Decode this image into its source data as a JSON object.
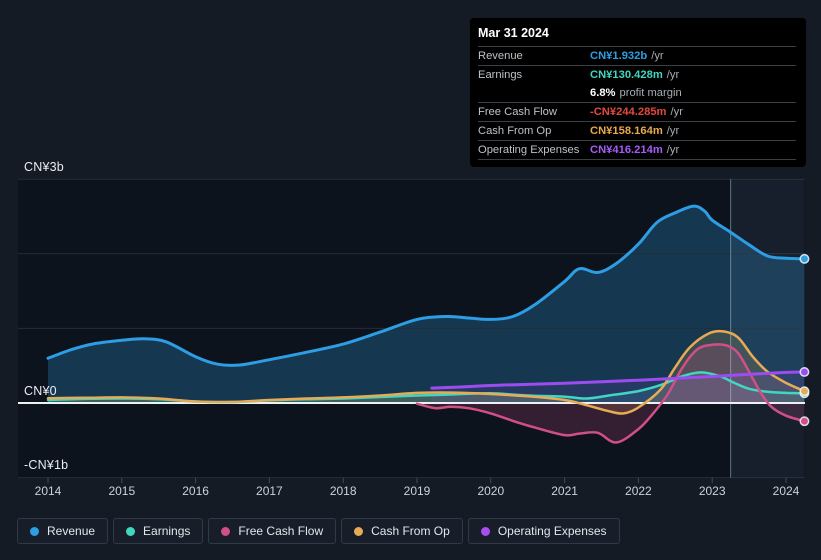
{
  "tooltip": {
    "date": "Mar 31 2024",
    "rows": [
      {
        "id": "revenue",
        "label": "Revenue",
        "value": "CN¥1.932b",
        "suffix": "/yr",
        "color": "#2d9de4"
      },
      {
        "id": "earnings",
        "label": "Earnings",
        "value": "CN¥130.428m",
        "suffix": "/yr",
        "color": "#41d6c0"
      },
      {
        "id": "profit-margin",
        "label": "",
        "value": "6.8%",
        "suffix": "profit margin",
        "color": "#ffffff"
      },
      {
        "id": "free-cash-flow",
        "label": "Free Cash Flow",
        "value": "-CN¥244.285m",
        "suffix": "/yr",
        "color": "#e2493f"
      },
      {
        "id": "cash-from-op",
        "label": "Cash From Op",
        "value": "CN¥158.164m",
        "suffix": "/yr",
        "color": "#e8a94c"
      },
      {
        "id": "operating-expenses",
        "label": "Operating Expenses",
        "value": "CN¥416.214m",
        "suffix": "/yr",
        "color": "#a55cf7"
      }
    ]
  },
  "legend": {
    "items": [
      {
        "id": "revenue",
        "label": "Revenue",
        "color": "#2d9de4"
      },
      {
        "id": "earnings",
        "label": "Earnings",
        "color": "#41d6c0"
      },
      {
        "id": "free-cash-flow",
        "label": "Free Cash Flow",
        "color": "#d14f87"
      },
      {
        "id": "cash-from-op",
        "label": "Cash From Op",
        "color": "#e7ab55"
      },
      {
        "id": "operating-expenses",
        "label": "Operating Expenses",
        "color": "#a94df0"
      }
    ]
  },
  "chart_data": {
    "type": "area",
    "title": "",
    "currency_unit": "CN¥ billions",
    "xlim": [
      2013.6,
      2024.25
    ],
    "ylim": [
      -1,
      3
    ],
    "grid_values": [
      3,
      2,
      1,
      0,
      -1
    ],
    "x_ticks": [
      2014,
      2015,
      2016,
      2017,
      2018,
      2019,
      2020,
      2021,
      2022,
      2023,
      2024
    ],
    "y_ticks": [
      {
        "value": 3,
        "label": "CN¥3b"
      },
      {
        "value": 0,
        "label": "CN¥0"
      },
      {
        "value": -1,
        "label": "-CN¥1b"
      }
    ],
    "highlight_period": {
      "start": 2023.25,
      "end": 2024.25
    },
    "now_line_x": 2023.25,
    "series": [
      {
        "name": "Revenue",
        "id": "revenue",
        "color": "#2d9de4",
        "width": 3,
        "fill_opacity": 0.26,
        "points": [
          [
            2014,
            0.6
          ],
          [
            2014.3,
            0.71
          ],
          [
            2014.6,
            0.79
          ],
          [
            2015,
            0.84
          ],
          [
            2015.3,
            0.86
          ],
          [
            2015.6,
            0.82
          ],
          [
            2016,
            0.62
          ],
          [
            2016.3,
            0.52
          ],
          [
            2016.6,
            0.51
          ],
          [
            2017,
            0.58
          ],
          [
            2017.5,
            0.68
          ],
          [
            2018,
            0.79
          ],
          [
            2018.5,
            0.95
          ],
          [
            2019,
            1.12
          ],
          [
            2019.4,
            1.16
          ],
          [
            2019.7,
            1.14
          ],
          [
            2020,
            1.12
          ],
          [
            2020.3,
            1.16
          ],
          [
            2020.6,
            1.32
          ],
          [
            2021,
            1.63
          ],
          [
            2021.2,
            1.8
          ],
          [
            2021.45,
            1.75
          ],
          [
            2021.7,
            1.87
          ],
          [
            2022,
            2.13
          ],
          [
            2022.25,
            2.42
          ],
          [
            2022.5,
            2.55
          ],
          [
            2022.75,
            2.64
          ],
          [
            2022.9,
            2.57
          ],
          [
            2023,
            2.45
          ],
          [
            2023.25,
            2.29
          ],
          [
            2023.5,
            2.12
          ],
          [
            2023.75,
            1.97
          ],
          [
            2024,
            1.94
          ],
          [
            2024.25,
            1.932
          ]
        ]
      },
      {
        "name": "Earnings",
        "id": "earnings",
        "color": "#41d6c0",
        "width": 2.5,
        "fill_opacity": 0.14,
        "points": [
          [
            2014,
            0.04
          ],
          [
            2014.5,
            0.055
          ],
          [
            2015,
            0.06
          ],
          [
            2015.5,
            0.05
          ],
          [
            2016,
            0.02
          ],
          [
            2016.5,
            0.012
          ],
          [
            2017,
            0.035
          ],
          [
            2017.5,
            0.05
          ],
          [
            2018,
            0.06
          ],
          [
            2018.5,
            0.08
          ],
          [
            2019,
            0.1
          ],
          [
            2019.5,
            0.115
          ],
          [
            2020,
            0.13
          ],
          [
            2020.5,
            0.1
          ],
          [
            2021,
            0.085
          ],
          [
            2021.3,
            0.06
          ],
          [
            2021.6,
            0.1
          ],
          [
            2022,
            0.16
          ],
          [
            2022.3,
            0.24
          ],
          [
            2022.6,
            0.36
          ],
          [
            2022.85,
            0.41
          ],
          [
            2023.1,
            0.36
          ],
          [
            2023.3,
            0.27
          ],
          [
            2023.5,
            0.19
          ],
          [
            2023.75,
            0.15
          ],
          [
            2024,
            0.135
          ],
          [
            2024.25,
            0.13
          ]
        ]
      },
      {
        "name": "Cash From Op",
        "id": "cash-from-op",
        "color": "#e7ab55",
        "width": 2.5,
        "fill_opacity": 0.18,
        "points": [
          [
            2014,
            0.065
          ],
          [
            2014.5,
            0.07
          ],
          [
            2015,
            0.075
          ],
          [
            2015.5,
            0.06
          ],
          [
            2016,
            0.02
          ],
          [
            2016.5,
            0.015
          ],
          [
            2017,
            0.04
          ],
          [
            2017.5,
            0.06
          ],
          [
            2018,
            0.075
          ],
          [
            2018.5,
            0.1
          ],
          [
            2019,
            0.135
          ],
          [
            2019.5,
            0.14
          ],
          [
            2020,
            0.12
          ],
          [
            2020.5,
            0.09
          ],
          [
            2021,
            0.04
          ],
          [
            2021.3,
            -0.03
          ],
          [
            2021.6,
            -0.11
          ],
          [
            2021.8,
            -0.14
          ],
          [
            2022,
            -0.06
          ],
          [
            2022.3,
            0.18
          ],
          [
            2022.5,
            0.48
          ],
          [
            2022.7,
            0.75
          ],
          [
            2022.95,
            0.93
          ],
          [
            2023.15,
            0.96
          ],
          [
            2023.35,
            0.88
          ],
          [
            2023.55,
            0.62
          ],
          [
            2023.75,
            0.42
          ],
          [
            2024,
            0.27
          ],
          [
            2024.25,
            0.158
          ]
        ]
      },
      {
        "name": "Free Cash Flow",
        "id": "free-cash-flow",
        "color": "#d14f87",
        "width": 2.5,
        "fill_opacity": 0.2,
        "points": [
          [
            2019,
            -0.01
          ],
          [
            2019.25,
            -0.07
          ],
          [
            2019.45,
            -0.05
          ],
          [
            2019.7,
            -0.07
          ],
          [
            2020,
            -0.14
          ],
          [
            2020.3,
            -0.24
          ],
          [
            2020.6,
            -0.33
          ],
          [
            2021,
            -0.43
          ],
          [
            2021.2,
            -0.41
          ],
          [
            2021.45,
            -0.4
          ],
          [
            2021.7,
            -0.53
          ],
          [
            2022,
            -0.35
          ],
          [
            2022.2,
            -0.14
          ],
          [
            2022.4,
            0.12
          ],
          [
            2022.6,
            0.48
          ],
          [
            2022.8,
            0.72
          ],
          [
            2023,
            0.78
          ],
          [
            2023.2,
            0.77
          ],
          [
            2023.35,
            0.67
          ],
          [
            2023.5,
            0.42
          ],
          [
            2023.65,
            0.15
          ],
          [
            2023.8,
            -0.05
          ],
          [
            2024,
            -0.17
          ],
          [
            2024.25,
            -0.244
          ]
        ]
      },
      {
        "name": "Operating Expenses",
        "id": "operating-expenses",
        "color": "#9b4df0",
        "width": 3,
        "fill_opacity": 0.12,
        "points": [
          [
            2019.2,
            0.2
          ],
          [
            2019.6,
            0.215
          ],
          [
            2020,
            0.235
          ],
          [
            2020.5,
            0.25
          ],
          [
            2021,
            0.265
          ],
          [
            2021.5,
            0.285
          ],
          [
            2022,
            0.305
          ],
          [
            2022.5,
            0.33
          ],
          [
            2023,
            0.355
          ],
          [
            2023.5,
            0.385
          ],
          [
            2024,
            0.41
          ],
          [
            2024.25,
            0.416
          ]
        ]
      }
    ]
  }
}
